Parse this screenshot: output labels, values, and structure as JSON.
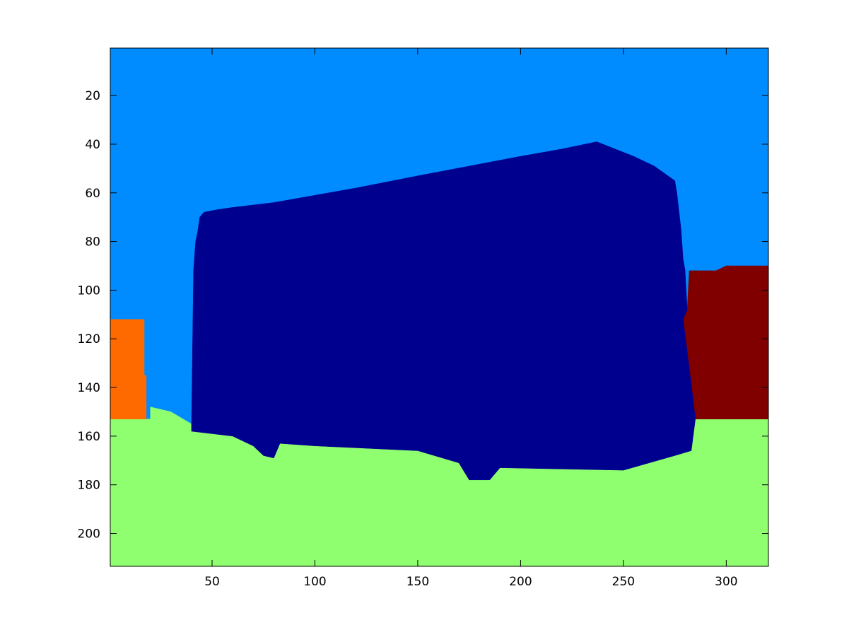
{
  "chart_data": {
    "type": "heatmap",
    "title": "",
    "xlabel": "",
    "ylabel": "",
    "xlim": [
      0.5,
      320.5
    ],
    "ylim": [
      213.5,
      0.5
    ],
    "y_axis_direction": "reversed",
    "grid": false,
    "legend": "none",
    "x_ticks": [
      50,
      100,
      150,
      200,
      250,
      300
    ],
    "x_tick_labels": [
      "50",
      "100",
      "150",
      "200",
      "250",
      "300"
    ],
    "y_ticks": [
      20,
      40,
      60,
      80,
      100,
      120,
      140,
      160,
      180,
      200
    ],
    "y_tick_labels": [
      "20",
      "40",
      "60",
      "80",
      "100",
      "120",
      "140",
      "160",
      "180",
      "200"
    ],
    "regions": [
      {
        "label": "background-sky",
        "color": "#008cff",
        "polygon": [
          [
            0.5,
            0.5
          ],
          [
            320.5,
            0.5
          ],
          [
            320.5,
            213.5
          ],
          [
            0.5,
            213.5
          ]
        ]
      },
      {
        "label": "ground",
        "color": "#8fff6f",
        "polygon": [
          [
            0.5,
            153
          ],
          [
            20,
            153
          ],
          [
            20,
            148
          ],
          [
            30,
            150
          ],
          [
            40,
            155
          ],
          [
            40,
            213.5
          ],
          [
            0.5,
            213.5
          ]
        ]
      },
      {
        "label": "ground-right",
        "color": "#8fff6f",
        "polygon": [
          [
            40,
            155
          ],
          [
            40,
            158
          ],
          [
            60,
            160
          ],
          [
            70,
            164
          ],
          [
            75,
            168
          ],
          [
            80,
            169
          ],
          [
            83,
            163
          ],
          [
            100,
            164
          ],
          [
            150,
            166
          ],
          [
            170,
            171
          ],
          [
            175,
            178
          ],
          [
            185,
            178
          ],
          [
            190,
            173
          ],
          [
            250,
            174
          ],
          [
            275,
            168
          ],
          [
            283,
            166
          ],
          [
            285,
            153
          ],
          [
            320.5,
            153
          ],
          [
            320.5,
            213.5
          ],
          [
            40,
            213.5
          ]
        ]
      },
      {
        "label": "left-object",
        "color": "#ff6a00",
        "polygon": [
          [
            0.5,
            112
          ],
          [
            17,
            112
          ],
          [
            17,
            135
          ],
          [
            18,
            135
          ],
          [
            18,
            153
          ],
          [
            0.5,
            153
          ]
        ]
      },
      {
        "label": "right-object",
        "color": "#800000",
        "polygon": [
          [
            282,
            92
          ],
          [
            295,
            92
          ],
          [
            300,
            90
          ],
          [
            320.5,
            90
          ],
          [
            320.5,
            153
          ],
          [
            285,
            153
          ],
          [
            282,
            132
          ],
          [
            279,
            112
          ],
          [
            281,
            108
          ]
        ]
      },
      {
        "label": "central-object",
        "color": "#00008f",
        "polygon": [
          [
            41,
            92
          ],
          [
            42,
            80
          ],
          [
            43,
            76
          ],
          [
            44,
            70
          ],
          [
            46,
            68
          ],
          [
            52,
            67
          ],
          [
            60,
            66
          ],
          [
            80,
            64
          ],
          [
            100,
            61
          ],
          [
            120,
            58
          ],
          [
            150,
            53
          ],
          [
            200,
            45
          ],
          [
            220,
            42
          ],
          [
            237,
            39
          ],
          [
            240,
            40
          ],
          [
            255,
            45
          ],
          [
            265,
            49
          ],
          [
            275,
            55
          ],
          [
            276,
            60
          ],
          [
            278,
            75
          ],
          [
            279,
            87
          ],
          [
            280,
            92
          ],
          [
            281,
            108
          ],
          [
            279,
            112
          ],
          [
            282,
            132
          ],
          [
            285,
            153
          ],
          [
            283,
            166
          ],
          [
            275,
            168
          ],
          [
            250,
            174
          ],
          [
            190,
            173
          ],
          [
            185,
            178
          ],
          [
            175,
            178
          ],
          [
            170,
            171
          ],
          [
            150,
            166
          ],
          [
            100,
            164
          ],
          [
            83,
            163
          ],
          [
            80,
            169
          ],
          [
            75,
            168
          ],
          [
            70,
            164
          ],
          [
            60,
            160
          ],
          [
            40,
            158
          ],
          [
            40,
            155
          ]
        ]
      }
    ]
  }
}
